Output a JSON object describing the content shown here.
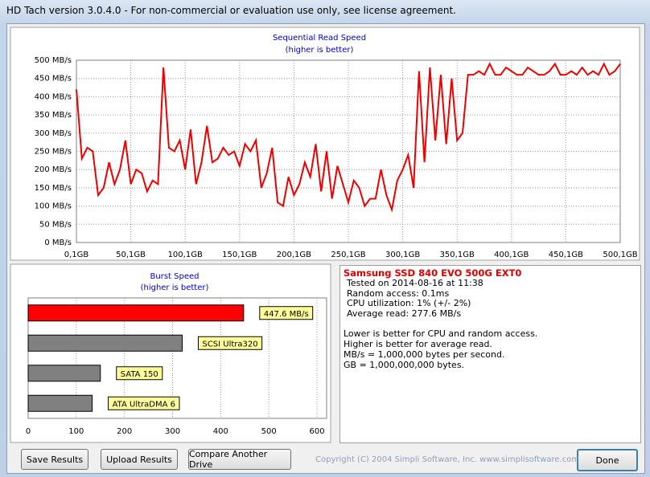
{
  "window_title": "HD Tach version 3.0.4.0  - For non-commercial or evaluation use only, see license agreement.",
  "chart_data": [
    {
      "type": "line",
      "title": "Sequential Read Speed",
      "subtitle": "(higher is better)",
      "color": "#ee0000",
      "grid": true,
      "x": [
        0,
        5,
        10,
        15,
        20,
        25,
        30,
        35,
        40,
        45,
        50,
        55,
        60,
        65,
        70,
        75,
        80,
        85,
        90,
        95,
        100,
        105,
        110,
        115,
        120,
        125,
        130,
        135,
        140,
        145,
        150,
        155,
        160,
        165,
        170,
        175,
        180,
        185,
        190,
        195,
        200,
        205,
        210,
        215,
        220,
        225,
        230,
        235,
        240,
        245,
        250,
        255,
        260,
        265,
        270,
        275,
        280,
        285,
        290,
        295,
        300,
        305,
        310,
        315,
        320,
        325,
        330,
        335,
        340,
        345,
        350,
        355,
        360,
        365,
        370,
        375,
        380,
        385,
        390,
        395,
        400,
        405,
        410,
        415,
        420,
        425,
        430,
        435,
        440,
        445,
        450,
        455,
        460,
        465,
        470,
        475,
        480,
        485,
        490,
        495,
        500
      ],
      "values": [
        420,
        230,
        260,
        250,
        130,
        150,
        220,
        160,
        200,
        280,
        160,
        200,
        190,
        140,
        170,
        160,
        480,
        260,
        250,
        280,
        200,
        310,
        160,
        220,
        320,
        220,
        230,
        260,
        240,
        250,
        210,
        270,
        250,
        280,
        150,
        190,
        260,
        110,
        100,
        180,
        130,
        160,
        220,
        180,
        270,
        140,
        250,
        120,
        210,
        160,
        110,
        170,
        150,
        100,
        120,
        120,
        200,
        130,
        90,
        170,
        200,
        240,
        150,
        470,
        220,
        480,
        280,
        460,
        270,
        450,
        280,
        300,
        460,
        460,
        470,
        460,
        490,
        460,
        460,
        480,
        470,
        460,
        460,
        480,
        470,
        460,
        460,
        470,
        490,
        460,
        460,
        470,
        460,
        480,
        460,
        470,
        460,
        490,
        460,
        470,
        490
      ],
      "xlim": [
        0,
        500
      ],
      "ylim": [
        0,
        500
      ],
      "xticks": [
        {
          "value": 0,
          "label": "0,1GB"
        },
        {
          "value": 50,
          "label": "50,1GB"
        },
        {
          "value": 100,
          "label": "100,1GB"
        },
        {
          "value": 150,
          "label": "150,1GB"
        },
        {
          "value": 200,
          "label": "200,1GB"
        },
        {
          "value": 250,
          "label": "250,1GB"
        },
        {
          "value": 300,
          "label": "300,1GB"
        },
        {
          "value": 350,
          "label": "350,1GB"
        },
        {
          "value": 400,
          "label": "400,1GB"
        },
        {
          "value": 450,
          "label": "450,1GB"
        },
        {
          "value": 500,
          "label": "500,1GB"
        }
      ],
      "yticks": [
        {
          "value": 0,
          "label": "0 MB/s"
        },
        {
          "value": 50,
          "label": "50 MB/s"
        },
        {
          "value": 100,
          "label": "100 MB/s"
        },
        {
          "value": 150,
          "label": "150 MB/s"
        },
        {
          "value": 200,
          "label": "200 MB/s"
        },
        {
          "value": 250,
          "label": "250 MB/s"
        },
        {
          "value": 300,
          "label": "300 MB/s"
        },
        {
          "value": 350,
          "label": "350 MB/s"
        },
        {
          "value": 400,
          "label": "400 MB/s"
        },
        {
          "value": 450,
          "label": "450 MB/s"
        },
        {
          "value": 500,
          "label": "500 MB/s"
        }
      ]
    },
    {
      "type": "hbar",
      "title": "Burst Speed",
      "subtitle": "(higher is better)",
      "grid": true,
      "categories": [
        null,
        "SCSI Ultra320",
        "SATA 150",
        "ATA UltraDMA 6"
      ],
      "values": [
        447.6,
        320,
        150,
        133
      ],
      "value_labels": [
        "447.6 MB/s",
        null,
        null,
        null
      ],
      "colors": [
        "#ff0000",
        "#808080",
        "#808080",
        "#808080"
      ],
      "xlim": [
        0,
        620
      ],
      "xticks": [
        0,
        100,
        200,
        300,
        400,
        500,
        600
      ]
    }
  ],
  "info": {
    "drive": "Samsung SSD 840 EVO 500G EXT0",
    "lines": [
      "Tested on 2014-08-16 at 11:38",
      "Random access: 0.1ms",
      "CPU utilization: 1% (+/- 2%)",
      "Average read: 277.6 MB/s"
    ],
    "notes": [
      "Lower is better for CPU and random access.",
      "Higher is better for average read.",
      "MB/s = 1,000,000 bytes per second.",
      "GB = 1,000,000,000 bytes."
    ]
  },
  "buttons": [
    "Save Results",
    "Upload Results",
    "Compare Another Drive",
    "Done"
  ],
  "copyright": "Copyright (C) 2004 Simpli Software, Inc. www.simplisoftware.com"
}
